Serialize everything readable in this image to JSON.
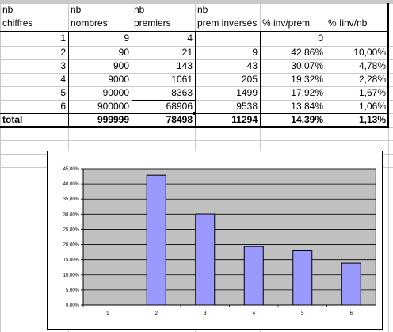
{
  "table": {
    "header_row1": [
      "nb",
      "nb",
      "nb",
      "nb",
      "",
      ""
    ],
    "header_row2": [
      "chiffres",
      "nombres",
      "premiers",
      "prem inversés",
      "% inv/prem",
      "% Iinv/nb"
    ],
    "rows": [
      [
        "1",
        "9",
        "4",
        "",
        "0",
        ""
      ],
      [
        "2",
        "90",
        "21",
        "9",
        "42,86%",
        "10,00%"
      ],
      [
        "3",
        "900",
        "143",
        "43",
        "30,07%",
        "4,78%"
      ],
      [
        "4",
        "9000",
        "1061",
        "205",
        "19,32%",
        "2,28%"
      ],
      [
        "5",
        "90000",
        "8363",
        "1499",
        "17,92%",
        "1,67%"
      ],
      [
        "6",
        "900000",
        "68906",
        "9538",
        "13,84%",
        "1,06%"
      ]
    ],
    "total_row": [
      "total",
      "999999",
      "78498",
      "11294",
      "14,39%",
      "1,13%"
    ]
  },
  "chart_data": {
    "type": "bar",
    "categories": [
      "1",
      "2",
      "3",
      "4",
      "5",
      "6"
    ],
    "values": [
      0,
      42.86,
      30.07,
      19.32,
      17.92,
      13.84
    ],
    "ylim": [
      0,
      45
    ],
    "y_tick_labels": [
      "0,00%",
      "5,00%",
      "10,00%",
      "15,00%",
      "20,00%",
      "25,00%",
      "30,00%",
      "35,00%",
      "40,00%",
      "45,00%"
    ],
    "grid": true,
    "bar_color": "#9999ff",
    "plot_background": "#c0c0c0"
  }
}
